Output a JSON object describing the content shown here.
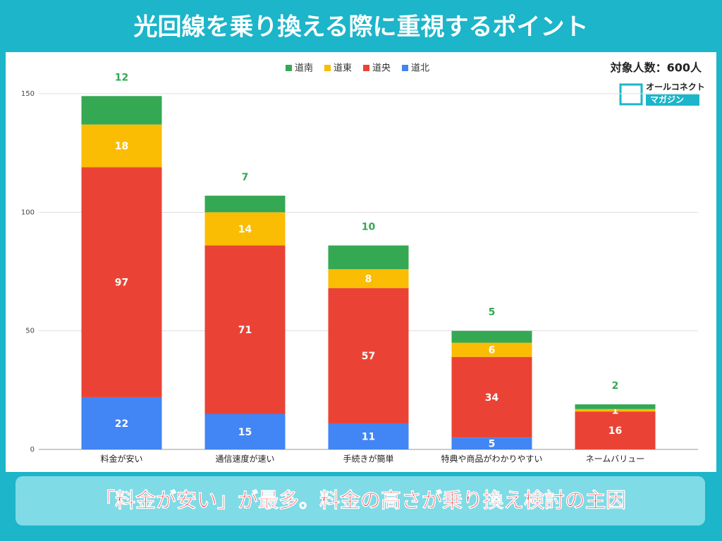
{
  "chart_data": {
    "type": "stacked-bar",
    "title": "光回線を乗り換える際に重視するポイント",
    "annotation": "対象人数：600人",
    "caption": "「料金が安い」が最多。料金の高さが乗り換え検討の主因",
    "categories": [
      "料金が安い",
      "通信速度が速い",
      "手続きが簡単",
      "特典や商品がわかりやすい",
      "ネームバリュー"
    ],
    "series": [
      {
        "name": "道南",
        "color": "#34a853",
        "values": [
          12,
          7,
          10,
          5,
          2
        ]
      },
      {
        "name": "道東",
        "color": "#fbbc04",
        "values": [
          18,
          14,
          8,
          6,
          1
        ]
      },
      {
        "name": "道央",
        "color": "#ea4335",
        "values": [
          97,
          71,
          57,
          34,
          16
        ]
      },
      {
        "name": "道北",
        "color": "#4285f4",
        "values": [
          22,
          15,
          11,
          5,
          0
        ]
      }
    ],
    "ylim": [
      0,
      150
    ],
    "yticks": [
      0,
      50,
      100,
      150
    ],
    "grid": true,
    "legend": "top"
  },
  "logo": {
    "line1": "オールコネクト",
    "line2": "マガジン"
  }
}
